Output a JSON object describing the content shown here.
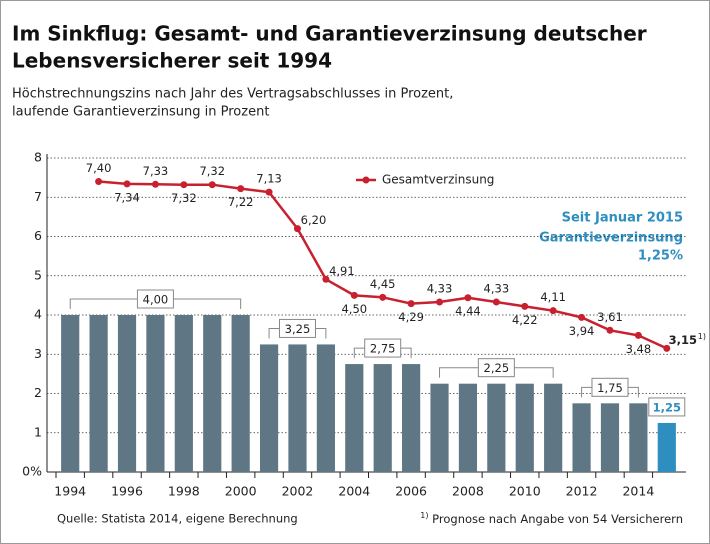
{
  "chart_data": {
    "type": "bar_line",
    "title": [
      "Im Sinkflug: Gesamt- und Garantieverzinsung deutscher",
      "Lebensversicherer seit 1994"
    ],
    "subtitle": [
      "Höchstrechnungszins nach Jahr des Vertragsabschlusses in Prozent,",
      "laufende Garantieverzinsung in Prozent"
    ],
    "categories": [
      "1994",
      null,
      "1996",
      null,
      "1998",
      null,
      "2000",
      null,
      "2002",
      null,
      "2004",
      null,
      "2006",
      null,
      "2008",
      null,
      "2010",
      null,
      "2012",
      null,
      "2014",
      null
    ],
    "series": [
      {
        "type": "bar",
        "colors": [
          "#5f7785",
          "#5f7785",
          "#5f7785",
          "#5f7785",
          "#5f7785",
          "#5f7785",
          "#5f7785",
          "#5f7785",
          "#5f7785",
          "#5f7785",
          "#5f7785",
          "#5f7785",
          "#5f7785",
          "#5f7785",
          "#5f7785",
          "#5f7785",
          "#5f7785",
          "#5f7785",
          "#5f7785",
          "#5f7785",
          "#5f7785",
          "#2e8ec0"
        ],
        "values": [
          4,
          4,
          4,
          4,
          4,
          4,
          4,
          3.25,
          3.25,
          3.25,
          2.75,
          2.75,
          2.75,
          2.25,
          2.25,
          2.25,
          2.25,
          2.25,
          1.75,
          1.75,
          1.75,
          1.25
        ],
        "value_labels": [
          null,
          null,
          null,
          "4,00",
          null,
          null,
          null,
          null,
          "3,25",
          null,
          null,
          "2,75",
          null,
          null,
          null,
          "2,25",
          null,
          null,
          null,
          "1,75",
          null,
          "1,25"
        ]
      },
      {
        "type": "line",
        "name": "Gesamtverzinsung",
        "color": "#c8202f",
        "values": [
          null,
          7.4,
          7.34,
          7.33,
          7.32,
          7.32,
          7.22,
          7.13,
          6.2,
          4.91,
          4.5,
          4.45,
          4.29,
          4.33,
          4.44,
          4.33,
          4.22,
          4.11,
          3.94,
          3.61,
          3.48,
          3.15
        ],
        "value_labels": [
          null,
          "7,40",
          "7,34",
          "7,33",
          "7,32",
          "7,32",
          "7,22",
          "7,13",
          "6,20",
          "4,91",
          "4,50",
          "4,45",
          "4,29",
          "4,33",
          "4,44",
          "4,33",
          "4,22",
          "4,11",
          "3,94",
          "3,61",
          "3,48",
          "3,15"
        ]
      }
    ],
    "ylim": [
      0,
      8
    ],
    "yticks": [
      {
        "value": 0,
        "label": "0%"
      },
      1,
      2,
      3,
      4,
      5,
      6,
      7,
      8
    ],
    "grid": true,
    "legend": "top",
    "annotation": [
      "Seit Januar 2015",
      "Garantieverzinsung",
      "1,25%"
    ],
    "source": "Quelle: Statista 2014, eigene Berechnung",
    "footnote": {
      "marker": "1)",
      "text": "Prognose nach Angabe von 54 Versicherern"
    }
  }
}
